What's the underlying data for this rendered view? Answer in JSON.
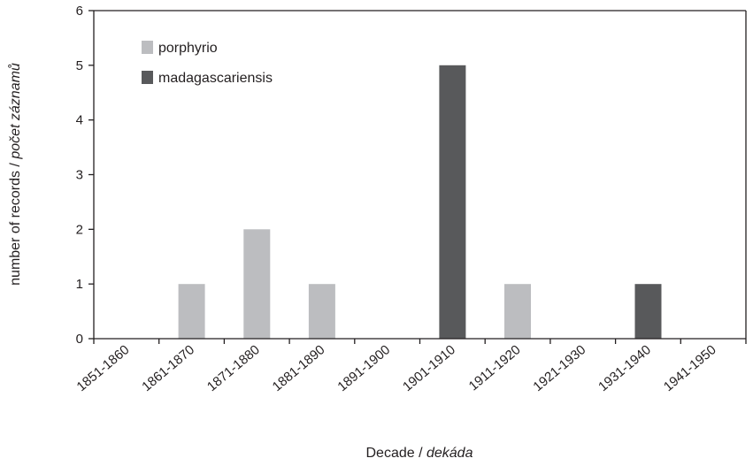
{
  "chart_data": {
    "type": "bar",
    "title": "",
    "xlabel": "Decade / ",
    "xlabel_italic": "dekáda",
    "ylabel": "number of records / ",
    "ylabel_italic": "počet záznamů",
    "categories": [
      "1851-1860",
      "1861-1870",
      "1871-1880",
      "1881-1890",
      "1891-1900",
      "1901-1910",
      "1911-1920",
      "1921-1930",
      "1931-1940",
      "1941-1950"
    ],
    "series": [
      {
        "name": "porphyrio",
        "values": [
          0,
          1,
          2,
          1,
          0,
          0,
          1,
          0,
          0,
          0
        ],
        "color": "#bcbdc0"
      },
      {
        "name": "madagascariensis",
        "values": [
          0,
          0,
          0,
          0,
          0,
          5,
          0,
          0,
          1,
          0
        ],
        "color": "#58595b"
      }
    ],
    "ylim": [
      0,
      6
    ],
    "yticks": [
      "0",
      "1",
      "2",
      "3",
      "4",
      "5",
      "6"
    ],
    "grid": false,
    "legend_position": "top-left"
  }
}
